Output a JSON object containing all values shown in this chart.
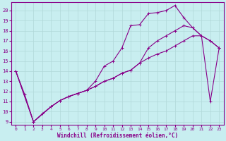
{
  "xlabel": "Windchill (Refroidissement éolien,°C)",
  "xlim": [
    -0.5,
    23.5
  ],
  "ylim": [
    8.7,
    20.8
  ],
  "yticks": [
    9,
    10,
    11,
    12,
    13,
    14,
    15,
    16,
    17,
    18,
    19,
    20
  ],
  "xticks": [
    0,
    1,
    2,
    3,
    4,
    5,
    6,
    7,
    8,
    9,
    10,
    11,
    12,
    13,
    14,
    15,
    16,
    17,
    18,
    19,
    20,
    21,
    22,
    23
  ],
  "bg_color": "#c8eef0",
  "grid_color": "#b0d8d8",
  "line_color": "#880088",
  "lines": [
    {
      "x": [
        0,
        1,
        2,
        3,
        4,
        5,
        6,
        7,
        8,
        9,
        10,
        11,
        12,
        13,
        14,
        15,
        16,
        17,
        18,
        19,
        20,
        21,
        22,
        23
      ],
      "y": [
        14,
        11.7,
        9,
        9.8,
        10.5,
        11.1,
        11.5,
        11.8,
        12.1,
        13.0,
        14.5,
        15.0,
        16.3,
        18.5,
        18.6,
        19.7,
        19.8,
        20.0,
        20.5,
        19.3,
        18.3,
        17.5,
        17.0,
        16.3
      ]
    },
    {
      "x": [
        0,
        2,
        4,
        5,
        6,
        7,
        8,
        9,
        10,
        11,
        12,
        13,
        14,
        15,
        16,
        17,
        18,
        19,
        20,
        21,
        22,
        23
      ],
      "y": [
        14,
        9,
        10.5,
        11.1,
        11.5,
        11.8,
        12.1,
        12.5,
        13.0,
        13.3,
        13.8,
        14.1,
        14.8,
        16.3,
        17.0,
        17.5,
        18.0,
        18.5,
        18.3,
        17.5,
        11.0,
        16.3
      ]
    },
    {
      "x": [
        0,
        2,
        4,
        5,
        6,
        7,
        8,
        9,
        10,
        11,
        12,
        13,
        14,
        15,
        16,
        17,
        18,
        19,
        20,
        21,
        22,
        23
      ],
      "y": [
        14,
        9,
        10.5,
        11.1,
        11.5,
        11.8,
        12.1,
        12.5,
        13.0,
        13.3,
        13.8,
        14.1,
        14.8,
        15.3,
        15.7,
        16.0,
        16.5,
        17.0,
        17.5,
        17.5,
        17.0,
        16.3
      ]
    }
  ]
}
